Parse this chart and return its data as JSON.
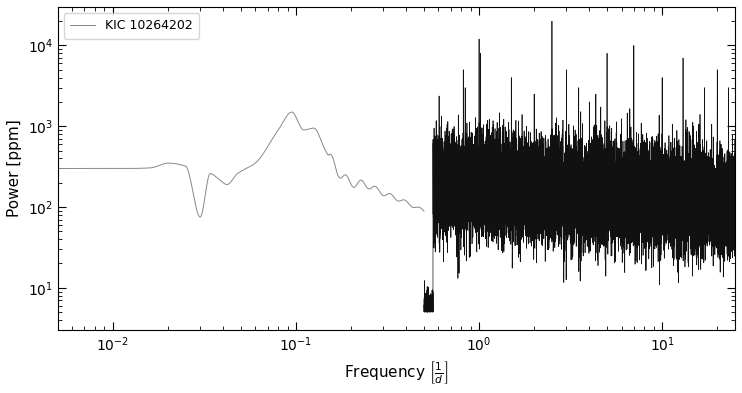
{
  "title": "",
  "xlabel": "Frequency $\\left[\\frac{1}{d}\\right]$",
  "ylabel": "Power [ppm]",
  "legend_label": "KIC 10264202",
  "xlim": [
    0.005,
    25
  ],
  "ylim": [
    3,
    30000
  ],
  "line_color_low": "#888888",
  "line_color_high": "#111111",
  "transition_freq": 0.5,
  "seed": 42,
  "figsize": [
    7.42,
    3.93
  ],
  "dpi": 100
}
